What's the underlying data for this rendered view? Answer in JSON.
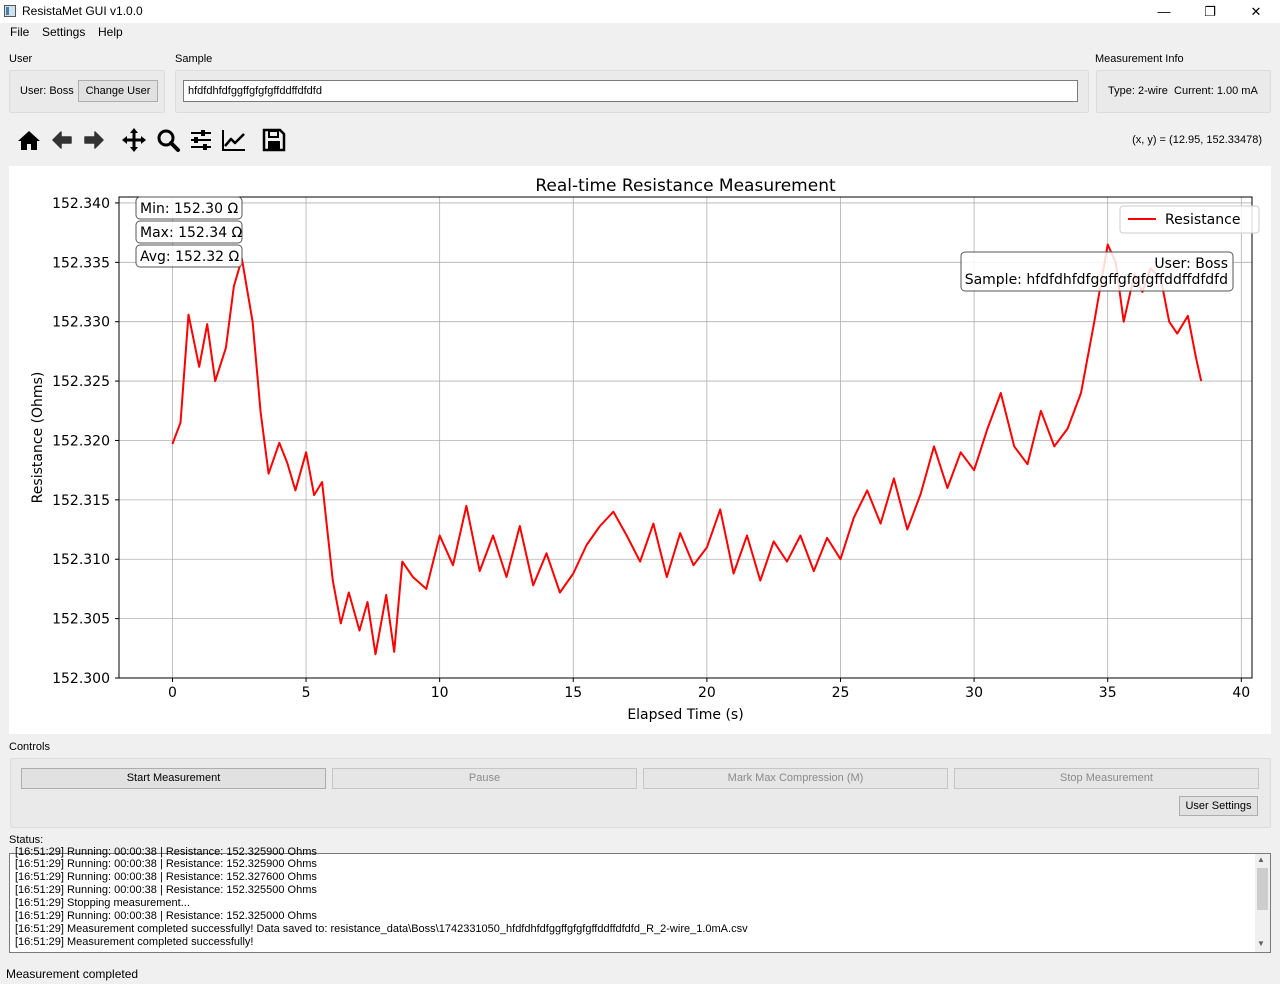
{
  "window": {
    "title": "ResistaMet GUI v1.0.0",
    "minimize_glyph": "—",
    "maximize_glyph": "❐",
    "close_glyph": "✕"
  },
  "menu": [
    "File",
    "Settings",
    "Help"
  ],
  "user_group": {
    "title": "User",
    "user_text": "User: Boss",
    "change_button": "Change User"
  },
  "sample_group": {
    "title": "Sample",
    "value": "hfdfdhfdfggffgfgfgffddffdfdfd"
  },
  "info_group": {
    "title": "Measurement Info",
    "text": "Type: 2-wire  Current: 1.00 mA"
  },
  "toolbar": {
    "icons": [
      "home-icon",
      "back-arrow-icon",
      "forward-arrow-icon",
      "pan-icon",
      "zoom-icon",
      "configure-subplots-icon",
      "edit-axis-icon",
      "save-icon"
    ],
    "coords": "(x, y) = (12.95, 152.33478)"
  },
  "chart_data": {
    "type": "line",
    "title": "Real-time Resistance Measurement",
    "xlabel": "Elapsed Time (s)",
    "ylabel": "Resistance (Ohms)",
    "xlim": [
      -2,
      40.4
    ],
    "ylim": [
      152.3,
      152.3405
    ],
    "xticks": [
      0,
      5,
      10,
      15,
      20,
      25,
      30,
      35,
      40
    ],
    "yticks": [
      "152.300",
      "152.305",
      "152.310",
      "152.315",
      "152.320",
      "152.325",
      "152.330",
      "152.335",
      "152.340"
    ],
    "grid": true,
    "legend_position": "top-right",
    "series": [
      {
        "name": "Resistance",
        "color": "#ff0000",
        "x": [
          0,
          0.3,
          0.6,
          1.0,
          1.3,
          1.6,
          2.0,
          2.3,
          2.6,
          3.0,
          3.3,
          3.6,
          4.0,
          4.3,
          4.6,
          5.0,
          5.3,
          5.6,
          6.0,
          6.3,
          6.6,
          7.0,
          7.3,
          7.6,
          8.0,
          8.3,
          8.6,
          9.0,
          9.5,
          10.0,
          10.5,
          11.0,
          11.5,
          12.0,
          12.5,
          13.0,
          13.5,
          14.0,
          14.5,
          15.0,
          15.5,
          16.0,
          16.5,
          17.0,
          17.5,
          18.0,
          18.5,
          19.0,
          19.5,
          20.0,
          20.5,
          21.0,
          21.5,
          22.0,
          22.5,
          23.0,
          23.5,
          24.0,
          24.5,
          25.0,
          25.5,
          26.0,
          26.5,
          27.0,
          27.5,
          28.0,
          28.5,
          29.0,
          29.5,
          30.0,
          30.5,
          31.0,
          31.5,
          32.0,
          32.5,
          33.0,
          33.5,
          34.0,
          34.5,
          35.0,
          35.3,
          35.6,
          36.0,
          36.3,
          36.6,
          37.0,
          37.3,
          37.6,
          38.0,
          38.3,
          38.5
        ],
        "values": [
          152.3197,
          152.3215,
          152.3306,
          152.3262,
          152.3298,
          152.325,
          152.3278,
          152.333,
          152.3353,
          152.33,
          152.3224,
          152.3172,
          152.3198,
          152.3181,
          152.3158,
          152.319,
          152.3154,
          152.3165,
          152.3082,
          152.3046,
          152.3072,
          152.304,
          152.3064,
          152.302,
          152.307,
          152.3022,
          152.3098,
          152.3085,
          152.3075,
          152.312,
          152.3095,
          152.3145,
          152.309,
          152.312,
          152.3085,
          152.3128,
          152.3078,
          152.3105,
          152.3072,
          152.3088,
          152.3112,
          152.3128,
          152.314,
          152.312,
          152.3098,
          152.313,
          152.3085,
          152.3122,
          152.3095,
          152.311,
          152.3142,
          152.3088,
          152.312,
          152.3082,
          152.3115,
          152.3098,
          152.312,
          152.309,
          152.3118,
          152.31,
          152.3135,
          152.3158,
          152.313,
          152.3168,
          152.3125,
          152.3155,
          152.3195,
          152.316,
          152.319,
          152.3175,
          152.321,
          152.324,
          152.3195,
          152.318,
          152.3225,
          152.3195,
          152.321,
          152.324,
          152.33,
          152.3365,
          152.335,
          152.33,
          152.334,
          152.3325,
          152.3345,
          152.3335,
          152.33,
          152.329,
          152.3305,
          152.327,
          152.325
        ]
      }
    ],
    "annotations": {
      "min": "Min: 152.30 Ω",
      "max": "Max: 152.34 Ω",
      "avg": "Avg: 152.32 Ω",
      "user": "User: Boss",
      "sample": "Sample: hfdfdhfdfggffgfgfgffddffdfdfd"
    }
  },
  "controls": {
    "title": "Controls",
    "start": "Start Measurement",
    "pause": "Pause",
    "mark": "Mark Max Compression (M)",
    "stop": "Stop Measurement",
    "settings": "User Settings"
  },
  "status": {
    "title": "Status:",
    "lines": [
      "[16:51:29] Running: 00:00:38 | Resistance: 152.325900 Ohms",
      "[16:51:29] Running: 00:00:38 | Resistance: 152.327600 Ohms",
      "[16:51:29] Running: 00:00:38 | Resistance: 152.325500 Ohms",
      "[16:51:29] Stopping measurement...",
      "[16:51:29] Running: 00:00:38 | Resistance: 152.325000 Ohms",
      "[16:51:29] Measurement completed successfully! Data saved to: resistance_data\\Boss\\1742331050_hfdfdhfdfggffgfgfgffddffdfdfd_R_2-wire_1.0mA.csv",
      "[16:51:29] Measurement completed successfully!"
    ],
    "bar_text": "Measurement completed"
  }
}
